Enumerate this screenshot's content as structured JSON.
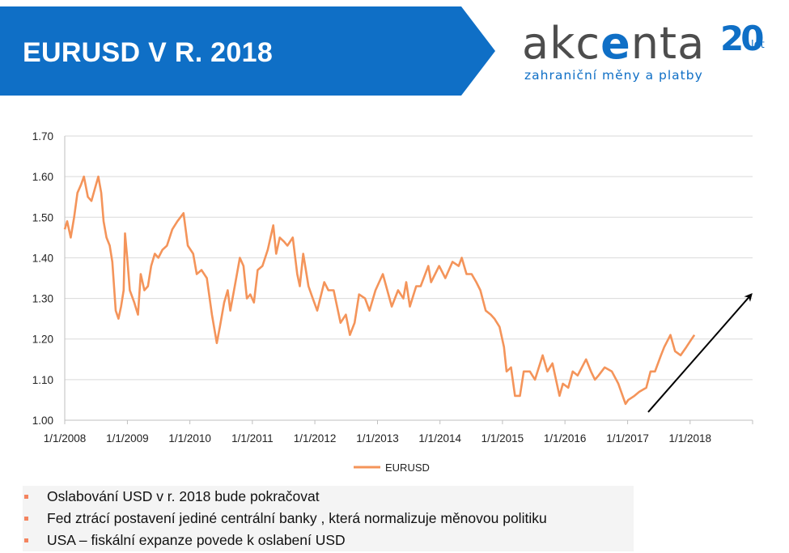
{
  "slide": {
    "title": "EURUSD V R. 2018",
    "banner_color": "#0f6fc6"
  },
  "logo": {
    "word_a": "akc",
    "word_e": "e",
    "word_b": "nta",
    "tagline": "zahraniční měny a platby",
    "anniversary": "20",
    "anniversary_suffix": "let",
    "color": "#0f6fc6"
  },
  "chart_data": {
    "type": "line",
    "title": "",
    "xlabel": "",
    "ylabel": "",
    "ylim": [
      1.0,
      1.7
    ],
    "yticks": [
      "1.00",
      "1.10",
      "1.20",
      "1.30",
      "1.40",
      "1.50",
      "1.60",
      "1.70"
    ],
    "x_range": [
      "2008-01-01",
      "2019-01-01"
    ],
    "x_tick_labels": [
      "1/1/2008",
      "1/1/2009",
      "1/1/2010",
      "1/1/2011",
      "1/1/2012",
      "1/1/2013",
      "1/1/2014",
      "1/1/2015",
      "1/1/2016",
      "1/1/2017",
      "1/1/2018"
    ],
    "grid": "horizontal",
    "legend": "bottom",
    "series": [
      {
        "name": "EURUSD",
        "color": "#f4945a",
        "points": [
          [
            "2008-01-01",
            1.47
          ],
          [
            "2008-01-15",
            1.49
          ],
          [
            "2008-02-05",
            1.45
          ],
          [
            "2008-02-25",
            1.5
          ],
          [
            "2008-03-15",
            1.56
          ],
          [
            "2008-04-05",
            1.58
          ],
          [
            "2008-04-22",
            1.6
          ],
          [
            "2008-05-15",
            1.55
          ],
          [
            "2008-06-05",
            1.54
          ],
          [
            "2008-06-25",
            1.57
          ],
          [
            "2008-07-15",
            1.6
          ],
          [
            "2008-08-01",
            1.56
          ],
          [
            "2008-08-15",
            1.49
          ],
          [
            "2008-09-01",
            1.45
          ],
          [
            "2008-09-20",
            1.43
          ],
          [
            "2008-10-05",
            1.39
          ],
          [
            "2008-10-25",
            1.27
          ],
          [
            "2008-11-10",
            1.25
          ],
          [
            "2008-11-25",
            1.28
          ],
          [
            "2008-12-10",
            1.32
          ],
          [
            "2008-12-18",
            1.46
          ],
          [
            "2008-12-31",
            1.4
          ],
          [
            "2009-01-15",
            1.32
          ],
          [
            "2009-02-10",
            1.29
          ],
          [
            "2009-03-04",
            1.26
          ],
          [
            "2009-03-20",
            1.36
          ],
          [
            "2009-04-10",
            1.32
          ],
          [
            "2009-05-01",
            1.33
          ],
          [
            "2009-05-20",
            1.38
          ],
          [
            "2009-06-10",
            1.41
          ],
          [
            "2009-07-01",
            1.4
          ],
          [
            "2009-07-25",
            1.42
          ],
          [
            "2009-08-20",
            1.43
          ],
          [
            "2009-09-20",
            1.47
          ],
          [
            "2009-10-20",
            1.49
          ],
          [
            "2009-11-25",
            1.51
          ],
          [
            "2009-12-20",
            1.43
          ],
          [
            "2010-01-20",
            1.41
          ],
          [
            "2010-02-10",
            1.36
          ],
          [
            "2010-03-10",
            1.37
          ],
          [
            "2010-04-10",
            1.35
          ],
          [
            "2010-05-10",
            1.26
          ],
          [
            "2010-06-07",
            1.19
          ],
          [
            "2010-06-25",
            1.23
          ],
          [
            "2010-07-20",
            1.29
          ],
          [
            "2010-08-10",
            1.32
          ],
          [
            "2010-08-25",
            1.27
          ],
          [
            "2010-09-20",
            1.33
          ],
          [
            "2010-10-20",
            1.4
          ],
          [
            "2010-11-10",
            1.38
          ],
          [
            "2010-11-30",
            1.3
          ],
          [
            "2010-12-20",
            1.31
          ],
          [
            "2011-01-10",
            1.29
          ],
          [
            "2011-02-01",
            1.37
          ],
          [
            "2011-03-01",
            1.38
          ],
          [
            "2011-04-01",
            1.42
          ],
          [
            "2011-05-03",
            1.48
          ],
          [
            "2011-05-20",
            1.41
          ],
          [
            "2011-06-10",
            1.45
          ],
          [
            "2011-07-05",
            1.44
          ],
          [
            "2011-07-25",
            1.43
          ],
          [
            "2011-08-25",
            1.45
          ],
          [
            "2011-09-20",
            1.36
          ],
          [
            "2011-10-05",
            1.33
          ],
          [
            "2011-10-25",
            1.41
          ],
          [
            "2011-11-25",
            1.33
          ],
          [
            "2011-12-20",
            1.3
          ],
          [
            "2012-01-15",
            1.27
          ],
          [
            "2012-02-25",
            1.34
          ],
          [
            "2012-03-20",
            1.32
          ],
          [
            "2012-04-20",
            1.32
          ],
          [
            "2012-05-30",
            1.24
          ],
          [
            "2012-06-30",
            1.26
          ],
          [
            "2012-07-24",
            1.21
          ],
          [
            "2012-08-20",
            1.24
          ],
          [
            "2012-09-15",
            1.31
          ],
          [
            "2012-10-20",
            1.3
          ],
          [
            "2012-11-15",
            1.27
          ],
          [
            "2012-12-20",
            1.32
          ],
          [
            "2013-02-01",
            1.36
          ],
          [
            "2013-03-25",
            1.28
          ],
          [
            "2013-05-01",
            1.32
          ],
          [
            "2013-06-01",
            1.3
          ],
          [
            "2013-06-18",
            1.34
          ],
          [
            "2013-07-09",
            1.28
          ],
          [
            "2013-08-15",
            1.33
          ],
          [
            "2013-09-10",
            1.33
          ],
          [
            "2013-10-25",
            1.38
          ],
          [
            "2013-11-10",
            1.34
          ],
          [
            "2013-12-27",
            1.38
          ],
          [
            "2014-02-01",
            1.35
          ],
          [
            "2014-03-15",
            1.39
          ],
          [
            "2014-04-20",
            1.38
          ],
          [
            "2014-05-08",
            1.4
          ],
          [
            "2014-06-05",
            1.36
          ],
          [
            "2014-07-05",
            1.36
          ],
          [
            "2014-08-01",
            1.34
          ],
          [
            "2014-08-25",
            1.32
          ],
          [
            "2014-09-25",
            1.27
          ],
          [
            "2014-10-25",
            1.26
          ],
          [
            "2014-11-15",
            1.25
          ],
          [
            "2014-12-15",
            1.23
          ],
          [
            "2015-01-10",
            1.18
          ],
          [
            "2015-01-25",
            1.12
          ],
          [
            "2015-02-20",
            1.13
          ],
          [
            "2015-03-15",
            1.06
          ],
          [
            "2015-04-13",
            1.06
          ],
          [
            "2015-05-05",
            1.12
          ],
          [
            "2015-06-10",
            1.12
          ],
          [
            "2015-07-10",
            1.1
          ],
          [
            "2015-08-24",
            1.16
          ],
          [
            "2015-09-20",
            1.12
          ],
          [
            "2015-10-20",
            1.14
          ],
          [
            "2015-11-30",
            1.06
          ],
          [
            "2015-12-20",
            1.09
          ],
          [
            "2016-01-20",
            1.08
          ],
          [
            "2016-02-15",
            1.12
          ],
          [
            "2016-03-15",
            1.11
          ],
          [
            "2016-05-03",
            1.15
          ],
          [
            "2016-06-01",
            1.12
          ],
          [
            "2016-06-24",
            1.1
          ],
          [
            "2016-07-15",
            1.11
          ],
          [
            "2016-08-20",
            1.13
          ],
          [
            "2016-10-01",
            1.12
          ],
          [
            "2016-11-08",
            1.09
          ],
          [
            "2016-12-20",
            1.04
          ],
          [
            "2017-01-05",
            1.05
          ],
          [
            "2017-02-10",
            1.06
          ],
          [
            "2017-03-10",
            1.07
          ],
          [
            "2017-04-20",
            1.08
          ],
          [
            "2017-05-15",
            1.12
          ],
          [
            "2017-06-10",
            1.12
          ],
          [
            "2017-07-15",
            1.16
          ],
          [
            "2017-08-03",
            1.18
          ],
          [
            "2017-09-08",
            1.21
          ],
          [
            "2017-10-05",
            1.17
          ],
          [
            "2017-11-07",
            1.16
          ],
          [
            "2017-12-10",
            1.18
          ],
          [
            "2018-01-10",
            1.2
          ],
          [
            "2018-01-26",
            1.21
          ]
        ]
      }
    ],
    "annotations": [
      {
        "type": "arrow",
        "from": [
          "2017-05-01",
          1.02
        ],
        "to": [
          "2018-12-25",
          1.31
        ],
        "color": "#000000"
      }
    ]
  },
  "bullets": [
    "Oslabování USD v r. 2018 bude pokračovat",
    "Fed ztrácí postavení jediné centrální banky , která normalizuje měnovou politiku",
    "USA – fiskální expanze povede k oslabení USD"
  ]
}
